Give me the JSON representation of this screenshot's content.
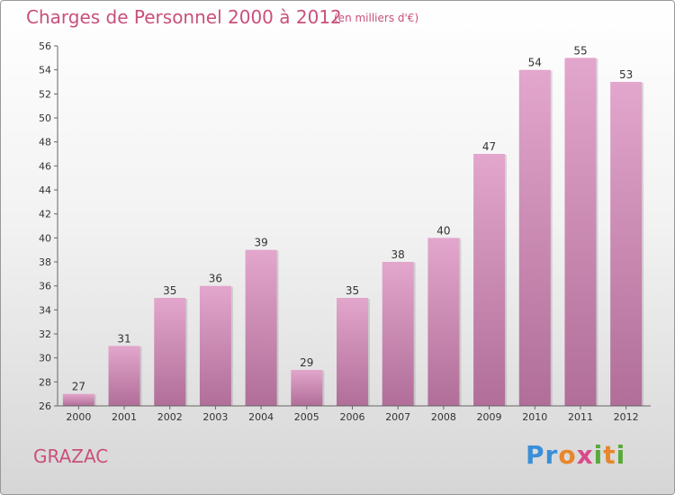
{
  "header": {
    "title": "Charges de Personnel 2000 à 2012",
    "unit": "(en milliers d'€)"
  },
  "footer": {
    "location": "GRAZAC",
    "logo": "Proxiti"
  },
  "colors": {
    "bar_top": "#e3a6cc",
    "bar_bottom": "#b06e98",
    "text_accent": "#c9507c"
  },
  "chart_data": {
    "type": "bar",
    "title": "Charges de Personnel 2000 à 2012",
    "subtitle": "(en milliers d'€)",
    "categories": [
      "2000",
      "2001",
      "2002",
      "2003",
      "2004",
      "2005",
      "2006",
      "2007",
      "2008",
      "2009",
      "2010",
      "2011",
      "2012"
    ],
    "values": [
      27,
      31,
      35,
      36,
      39,
      29,
      35,
      38,
      40,
      47,
      54,
      55,
      53
    ],
    "ylim": [
      26,
      56
    ],
    "yticks": [
      26,
      28,
      30,
      32,
      34,
      36,
      38,
      40,
      42,
      44,
      46,
      48,
      50,
      52,
      54,
      56
    ],
    "grid": false,
    "legend": "none"
  }
}
